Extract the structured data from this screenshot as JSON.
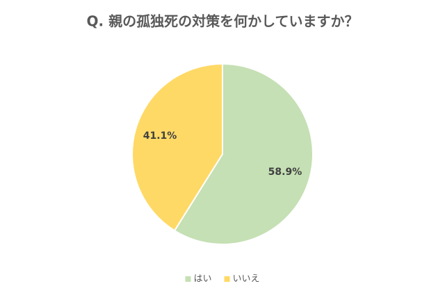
{
  "chart_data": {
    "type": "pie",
    "title": "Q. 親の孤独死の対策を何かしていますか？",
    "categories": [
      "はい",
      "いいえ"
    ],
    "values": [
      58.9,
      41.1
    ],
    "value_labels": [
      "58.9%",
      "41.1%"
    ],
    "colors": [
      "#c5e0b4",
      "#ffd966"
    ],
    "legend": "bottom"
  }
}
